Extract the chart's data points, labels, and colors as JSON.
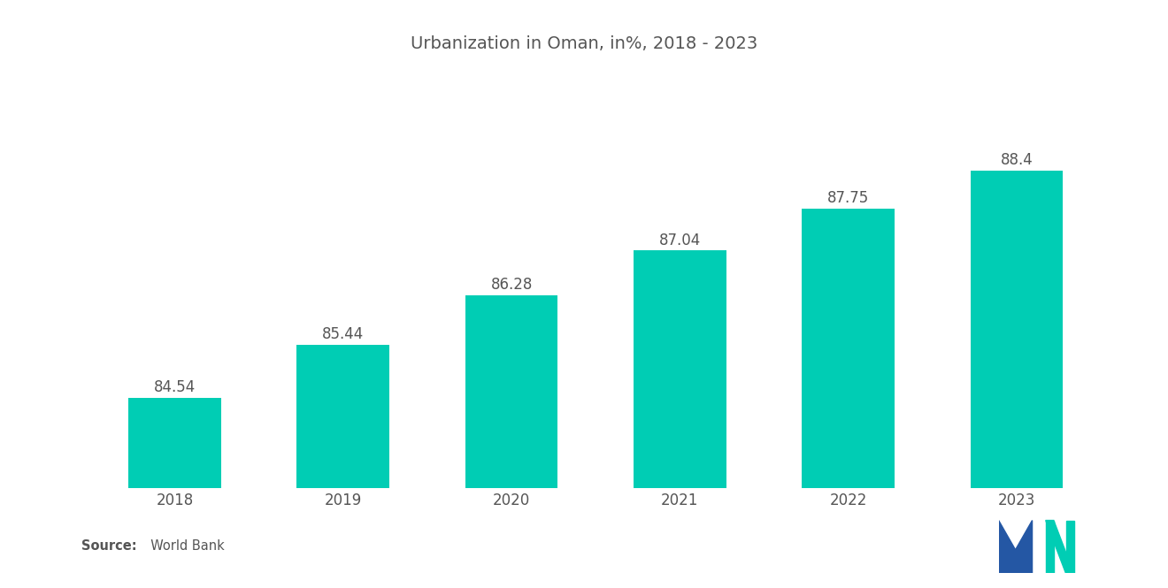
{
  "title": "Urbanization in Oman, in%, 2018 - 2023",
  "categories": [
    "2018",
    "2019",
    "2020",
    "2021",
    "2022",
    "2023"
  ],
  "values": [
    84.54,
    85.44,
    86.28,
    87.04,
    87.75,
    88.4
  ],
  "bar_color": "#00CDB4",
  "background_color": "#ffffff",
  "title_fontsize": 14,
  "label_fontsize": 12,
  "value_fontsize": 12,
  "ylim_min": 83.0,
  "ylim_max": 89.5,
  "bar_width": 0.55,
  "source_bold": "Source:",
  "source_normal": "  World Bank",
  "text_color": "#555555",
  "logo_dark_blue": "#2457A4",
  "logo_teal": "#00CDB4"
}
